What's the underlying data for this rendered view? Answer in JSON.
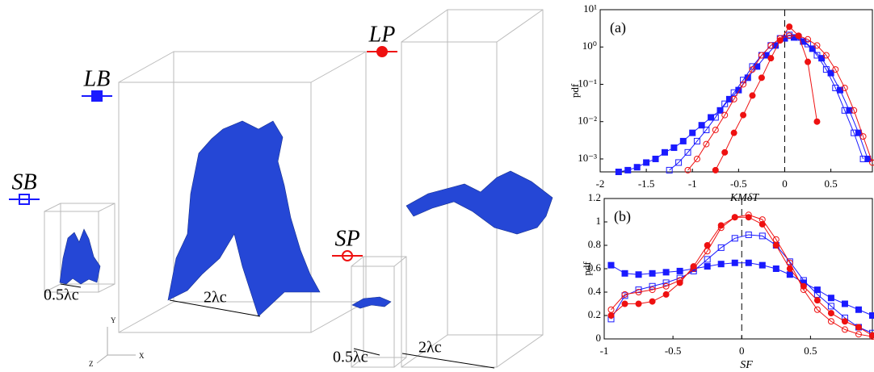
{
  "figure": {
    "dims": [
      "0.5λc",
      "2λc",
      "0.5λc",
      "2λc"
    ],
    "axes": [
      "Y",
      "Z",
      "X"
    ]
  },
  "chart_data": [
    {
      "type": "line",
      "label": "(a)",
      "ylabel": "pdf",
      "xlabel": "KMδT",
      "log_y": true,
      "vline": 0,
      "xlim": [
        -2,
        0.95
      ],
      "ylim": [
        0.00045,
        10
      ],
      "xticks": [
        -2,
        -1.5,
        -1,
        -0.5,
        0,
        0.5
      ],
      "yticks": [
        {
          "value": 0.001,
          "label": "10⁻³"
        },
        {
          "value": 0.01,
          "label": "10⁻²"
        },
        {
          "value": 0.1,
          "label": "10⁻¹"
        },
        {
          "value": 1,
          "label": "10⁰"
        },
        {
          "value": 10,
          "label": "10¹"
        }
      ],
      "series": [
        {
          "name": "LB",
          "color": "#1a1aff",
          "marker": "square",
          "filled": true,
          "x": [
            -1.8,
            -1.7,
            -1.6,
            -1.5,
            -1.4,
            -1.3,
            -1.2,
            -1.1,
            -1.0,
            -0.9,
            -0.8,
            -0.7,
            -0.6,
            -0.5,
            -0.4,
            -0.3,
            -0.2,
            -0.1,
            0,
            0.1,
            0.2,
            0.3,
            0.4,
            0.5,
            0.6,
            0.7,
            0.8,
            0.9
          ],
          "values": [
            0.00045,
            0.0005,
            0.0006,
            0.0008,
            0.001,
            0.0015,
            0.002,
            0.003,
            0.005,
            0.008,
            0.013,
            0.02,
            0.04,
            0.07,
            0.15,
            0.3,
            0.6,
            1.1,
            1.7,
            1.8,
            1.4,
            0.9,
            0.5,
            0.2,
            0.07,
            0.02,
            0.005,
            0.001
          ]
        },
        {
          "name": "SB",
          "color": "#1a1aff",
          "marker": "square",
          "filled": false,
          "x": [
            -1.25,
            -1.15,
            -1.05,
            -0.95,
            -0.85,
            -0.75,
            -0.65,
            -0.55,
            -0.45,
            -0.35,
            -0.25,
            -0.15,
            -0.05,
            0.05,
            0.15,
            0.25,
            0.35,
            0.45,
            0.55,
            0.65,
            0.75,
            0.85
          ],
          "values": [
            0.0005,
            0.0008,
            0.0015,
            0.003,
            0.006,
            0.013,
            0.03,
            0.06,
            0.13,
            0.3,
            0.6,
            1.1,
            1.7,
            2.1,
            1.8,
            1.2,
            0.6,
            0.25,
            0.08,
            0.02,
            0.005,
            0.001
          ]
        },
        {
          "name": "SP",
          "color": "#ee1111",
          "marker": "circle",
          "filled": false,
          "x": [
            -1.05,
            -0.95,
            -0.85,
            -0.75,
            -0.65,
            -0.55,
            -0.45,
            -0.35,
            -0.25,
            -0.15,
            -0.05,
            0.05,
            0.15,
            0.25,
            0.35,
            0.45,
            0.55,
            0.65,
            0.75,
            0.85,
            0.95
          ],
          "values": [
            0.0005,
            0.001,
            0.0025,
            0.006,
            0.015,
            0.04,
            0.1,
            0.25,
            0.6,
            1.1,
            1.7,
            2,
            2,
            1.6,
            1.1,
            0.6,
            0.25,
            0.08,
            0.02,
            0.004,
            0.0008
          ]
        },
        {
          "name": "LP",
          "color": "#ee1111",
          "marker": "circle",
          "filled": true,
          "x": [
            -0.75,
            -0.65,
            -0.55,
            -0.45,
            -0.35,
            -0.25,
            -0.15,
            -0.05,
            0.05,
            0.15,
            0.25,
            0.35
          ],
          "values": [
            0.0005,
            0.0015,
            0.005,
            0.015,
            0.05,
            0.15,
            0.5,
            1.5,
            3.5,
            2,
            0.4,
            0.01
          ]
        }
      ]
    },
    {
      "type": "line",
      "label": "(b)",
      "ylabel": "pdf",
      "xlabel": "SF",
      "log_y": false,
      "vline": 0,
      "xlim": [
        -1,
        0.95
      ],
      "ylim": [
        0,
        1.2
      ],
      "xticks": [
        -1,
        -0.5,
        0,
        0.5
      ],
      "yticks": [
        0,
        0.2,
        0.4,
        0.6,
        0.8,
        1,
        1.2
      ],
      "series": [
        {
          "name": "LB",
          "color": "#1a1aff",
          "marker": "square",
          "filled": true,
          "x": [
            -0.95,
            -0.85,
            -0.75,
            -0.65,
            -0.55,
            -0.45,
            -0.35,
            -0.25,
            -0.15,
            -0.05,
            0.05,
            0.15,
            0.25,
            0.35,
            0.45,
            0.55,
            0.65,
            0.75,
            0.85,
            0.95
          ],
          "values": [
            0.63,
            0.56,
            0.55,
            0.56,
            0.57,
            0.58,
            0.6,
            0.62,
            0.64,
            0.65,
            0.65,
            0.63,
            0.6,
            0.55,
            0.48,
            0.42,
            0.35,
            0.3,
            0.25,
            0.2
          ]
        },
        {
          "name": "SB",
          "color": "#1a1aff",
          "marker": "square",
          "filled": false,
          "x": [
            -0.95,
            -0.85,
            -0.75,
            -0.65,
            -0.55,
            -0.45,
            -0.35,
            -0.25,
            -0.15,
            -0.05,
            0.05,
            0.15,
            0.25,
            0.35,
            0.45,
            0.55,
            0.65,
            0.75,
            0.85,
            0.95
          ],
          "values": [
            0.17,
            0.37,
            0.42,
            0.45,
            0.48,
            0.52,
            0.58,
            0.68,
            0.78,
            0.86,
            0.89,
            0.88,
            0.8,
            0.66,
            0.5,
            0.38,
            0.28,
            0.18,
            0.1,
            0.05
          ]
        },
        {
          "name": "SP",
          "color": "#ee1111",
          "marker": "circle",
          "filled": false,
          "x": [
            -0.95,
            -0.85,
            -0.75,
            -0.65,
            -0.55,
            -0.45,
            -0.35,
            -0.25,
            -0.15,
            -0.05,
            0.05,
            0.15,
            0.25,
            0.35,
            0.45,
            0.55,
            0.65,
            0.75,
            0.85,
            0.95
          ],
          "values": [
            0.25,
            0.38,
            0.4,
            0.42,
            0.45,
            0.5,
            0.6,
            0.75,
            0.95,
            1.04,
            1.06,
            1.02,
            0.85,
            0.65,
            0.42,
            0.25,
            0.15,
            0.08,
            0.04,
            0.02
          ]
        },
        {
          "name": "LP",
          "color": "#ee1111",
          "marker": "circle",
          "filled": true,
          "x": [
            -0.95,
            -0.85,
            -0.75,
            -0.65,
            -0.55,
            -0.45,
            -0.35,
            -0.25,
            -0.15,
            -0.05,
            0.05,
            0.15,
            0.25,
            0.35,
            0.45,
            0.55,
            0.65,
            0.75,
            0.85,
            0.95
          ],
          "values": [
            0.2,
            0.3,
            0.3,
            0.32,
            0.38,
            0.48,
            0.62,
            0.8,
            0.97,
            1.04,
            1.04,
            0.98,
            0.8,
            0.6,
            0.45,
            0.33,
            0.22,
            0.15,
            0.1,
            0.03
          ]
        }
      ]
    }
  ]
}
